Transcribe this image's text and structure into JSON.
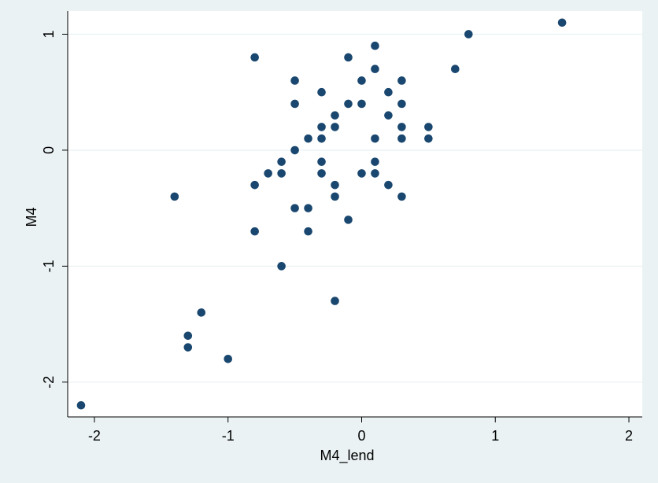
{
  "colors": {
    "outer_background": "#eaf2f3",
    "plot_background": "#ffffff",
    "gridline": "#eaf2f3",
    "marker": "#1a476f",
    "axis": "#000000"
  },
  "chart_data": {
    "type": "scatter",
    "xlabel": "M4_lend",
    "ylabel": "M4",
    "xlim": [
      -2.2,
      2.1
    ],
    "ylim": [
      -2.3,
      1.2
    ],
    "xticks": [
      -2,
      -1,
      0,
      1,
      2
    ],
    "yticks": [
      -2,
      -1,
      0,
      1
    ],
    "xtick_labels": [
      "-2",
      "-1",
      "0",
      "1",
      "2"
    ],
    "ytick_labels": [
      "-2",
      "-1",
      "0",
      "1"
    ],
    "grid": "horizontal",
    "legend": "none",
    "points": [
      {
        "x": -2.1,
        "y": -2.2
      },
      {
        "x": -1.4,
        "y": -0.4
      },
      {
        "x": -1.3,
        "y": -1.6
      },
      {
        "x": -1.3,
        "y": -1.7
      },
      {
        "x": -1.2,
        "y": -1.4
      },
      {
        "x": -1.0,
        "y": -1.8
      },
      {
        "x": -0.8,
        "y": 0.8
      },
      {
        "x": -0.8,
        "y": -0.3
      },
      {
        "x": -0.8,
        "y": -0.7
      },
      {
        "x": -0.7,
        "y": -0.2
      },
      {
        "x": -0.6,
        "y": -0.1
      },
      {
        "x": -0.6,
        "y": -0.2
      },
      {
        "x": -0.6,
        "y": -1.0
      },
      {
        "x": -0.5,
        "y": 0.6
      },
      {
        "x": -0.5,
        "y": 0.4
      },
      {
        "x": -0.5,
        "y": 0.0
      },
      {
        "x": -0.5,
        "y": -0.5
      },
      {
        "x": -0.4,
        "y": 0.1
      },
      {
        "x": -0.4,
        "y": -0.5
      },
      {
        "x": -0.4,
        "y": -0.7
      },
      {
        "x": -0.3,
        "y": 0.5
      },
      {
        "x": -0.3,
        "y": 0.2
      },
      {
        "x": -0.3,
        "y": 0.1
      },
      {
        "x": -0.3,
        "y": -0.1
      },
      {
        "x": -0.3,
        "y": -0.2
      },
      {
        "x": -0.2,
        "y": 0.3
      },
      {
        "x": -0.2,
        "y": 0.2
      },
      {
        "x": -0.2,
        "y": -0.3
      },
      {
        "x": -0.2,
        "y": -0.4
      },
      {
        "x": -0.2,
        "y": -1.3
      },
      {
        "x": -0.1,
        "y": 0.8
      },
      {
        "x": -0.1,
        "y": 0.4
      },
      {
        "x": -0.1,
        "y": -0.6
      },
      {
        "x": 0.0,
        "y": 0.6
      },
      {
        "x": 0.0,
        "y": 0.4
      },
      {
        "x": 0.0,
        "y": -0.2
      },
      {
        "x": 0.1,
        "y": 0.9
      },
      {
        "x": 0.1,
        "y": 0.7
      },
      {
        "x": 0.1,
        "y": 0.1
      },
      {
        "x": 0.1,
        "y": -0.1
      },
      {
        "x": 0.1,
        "y": -0.2
      },
      {
        "x": 0.2,
        "y": 0.5
      },
      {
        "x": 0.2,
        "y": 0.3
      },
      {
        "x": 0.2,
        "y": -0.3
      },
      {
        "x": 0.3,
        "y": 0.6
      },
      {
        "x": 0.3,
        "y": 0.4
      },
      {
        "x": 0.3,
        "y": 0.2
      },
      {
        "x": 0.3,
        "y": 0.1
      },
      {
        "x": 0.3,
        "y": -0.4
      },
      {
        "x": 0.5,
        "y": 0.2
      },
      {
        "x": 0.5,
        "y": 0.1
      },
      {
        "x": 0.7,
        "y": 0.7
      },
      {
        "x": 0.8,
        "y": 1.0
      },
      {
        "x": 1.5,
        "y": 1.1
      }
    ]
  }
}
